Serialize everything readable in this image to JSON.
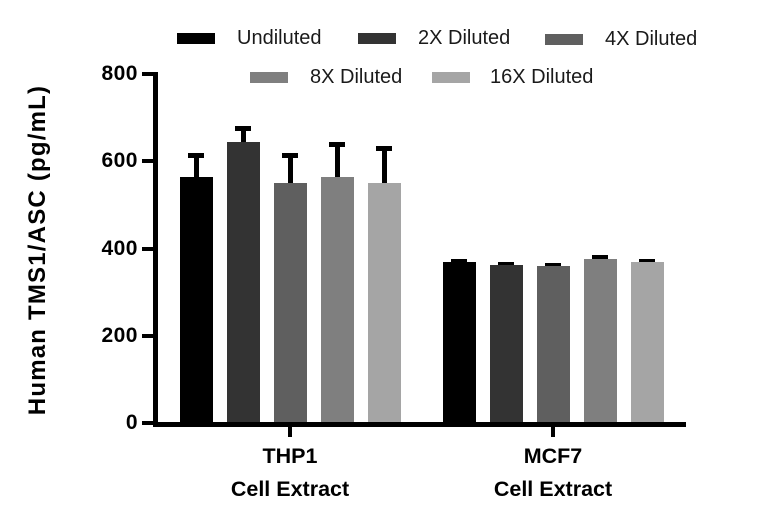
{
  "chart_data": {
    "type": "bar",
    "title": "",
    "xlabel": "",
    "ylabel": "Human TMS1/ASC (pg/mL)",
    "ylim": [
      0,
      800
    ],
    "yticks": [
      0,
      200,
      400,
      600,
      800
    ],
    "grid": false,
    "legend_position": "top",
    "categories": [
      "THP1 Cell Extract",
      "MCF7 Cell Extract"
    ],
    "category_lines": [
      [
        "THP1",
        "Cell Extract"
      ],
      [
        "MCF7",
        "Cell Extract"
      ]
    ],
    "error_bars": "upper only, black stems and caps",
    "series": [
      {
        "name": "Undiluted",
        "color": "#000000",
        "values": [
          565,
          368
        ],
        "errors": [
          55,
          9
        ]
      },
      {
        "name": "2X Diluted",
        "color": "#333333",
        "values": [
          643,
          363
        ],
        "errors": [
          37,
          7
        ]
      },
      {
        "name": "4X Diluted",
        "color": "#5f5f5f",
        "values": [
          551,
          359
        ],
        "errors": [
          69,
          7
        ]
      },
      {
        "name": "8X Diluted",
        "color": "#7f7f7f",
        "values": [
          563,
          377
        ],
        "errors": [
          80,
          7
        ]
      },
      {
        "name": "16X Diluted",
        "color": "#a5a5a5",
        "values": [
          549,
          368
        ],
        "errors": [
          87,
          9
        ]
      }
    ]
  }
}
